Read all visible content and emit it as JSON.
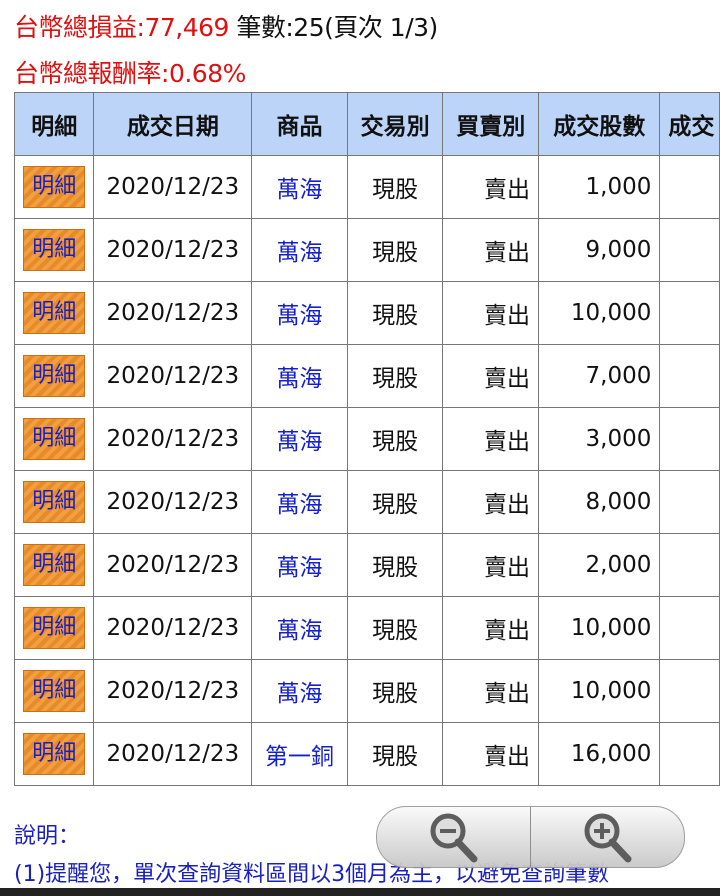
{
  "summary": {
    "pl_label": "台幣總損益:",
    "pl_value": "77,469",
    "count_text": "筆數:25(頁次 1/3)",
    "return_label": "台幣總報酬率:",
    "return_value": "0.68%"
  },
  "table": {
    "headers": [
      "明細",
      "成交日期",
      "商品",
      "交易別",
      "買賣別",
      "成交股數",
      "成交"
    ],
    "detail_label": "明細",
    "rows": [
      {
        "date": "2020/12/23",
        "product": "萬海",
        "type": "現股",
        "side": "賣出",
        "shares": "1,000"
      },
      {
        "date": "2020/12/23",
        "product": "萬海",
        "type": "現股",
        "side": "賣出",
        "shares": "9,000"
      },
      {
        "date": "2020/12/23",
        "product": "萬海",
        "type": "現股",
        "side": "賣出",
        "shares": "10,000"
      },
      {
        "date": "2020/12/23",
        "product": "萬海",
        "type": "現股",
        "side": "賣出",
        "shares": "7,000"
      },
      {
        "date": "2020/12/23",
        "product": "萬海",
        "type": "現股",
        "side": "賣出",
        "shares": "3,000"
      },
      {
        "date": "2020/12/23",
        "product": "萬海",
        "type": "現股",
        "side": "賣出",
        "shares": "8,000"
      },
      {
        "date": "2020/12/23",
        "product": "萬海",
        "type": "現股",
        "side": "賣出",
        "shares": "2,000"
      },
      {
        "date": "2020/12/23",
        "product": "萬海",
        "type": "現股",
        "side": "賣出",
        "shares": "10,000"
      },
      {
        "date": "2020/12/23",
        "product": "萬海",
        "type": "現股",
        "side": "賣出",
        "shares": "10,000"
      },
      {
        "date": "2020/12/23",
        "product": "第一銅",
        "type": "現股",
        "side": "賣出",
        "shares": "16,000"
      }
    ]
  },
  "notes": {
    "title": "說明：",
    "line1": "(1)提醒您，單次查詢資料區間以3個月為主，以避免查詢筆數"
  },
  "zoom_controls": {
    "out_icon": "zoom-out-icon",
    "in_icon": "zoom-in-icon"
  }
}
